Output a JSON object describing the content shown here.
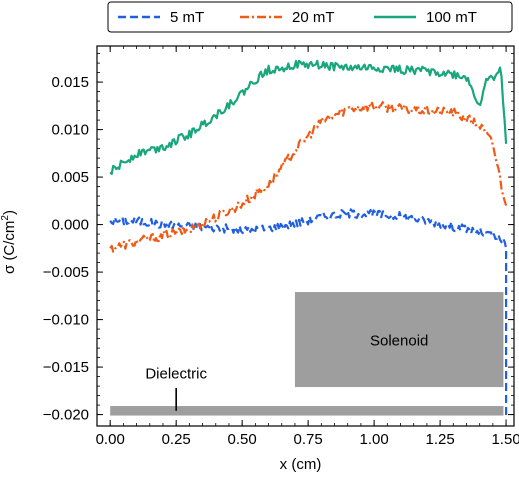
{
  "chart_data": {
    "type": "line",
    "title": "",
    "xlabel": "x (cm)",
    "ylabel_main": "σ (C/cm",
    "ylabel_sup": "2",
    "ylabel_tail": ")",
    "xlim": [
      -0.05,
      1.53
    ],
    "ylim": [
      -0.0212,
      0.0188
    ],
    "xticks": [
      0.0,
      0.25,
      0.5,
      0.75,
      1.0,
      1.25,
      1.5
    ],
    "xtick_labels": [
      "0.00",
      "0.25",
      "0.50",
      "0.75",
      "1.00",
      "1.25",
      "1.50"
    ],
    "yticks": [
      -0.02,
      -0.015,
      -0.01,
      -0.005,
      0.0,
      0.005,
      0.01,
      0.015
    ],
    "ytick_labels": [
      "−0.020",
      "−0.015",
      "−0.010",
      "−0.005",
      "0.000",
      "0.005",
      "0.010",
      "0.015"
    ],
    "grid": false,
    "legend_position": "top (above plot)",
    "series": [
      {
        "name": "5 mT",
        "color": "#1f5fe0",
        "dash": "dashed",
        "x": [
          0.0,
          0.1,
          0.2,
          0.3,
          0.4,
          0.5,
          0.6,
          0.7,
          0.8,
          0.9,
          1.0,
          1.1,
          1.2,
          1.3,
          1.4,
          1.45,
          1.49,
          1.5,
          1.5
        ],
        "y": [
          0.0004,
          0.0004,
          0.0,
          -0.0002,
          -0.0003,
          -0.0006,
          -0.0004,
          0.0001,
          0.0008,
          0.0012,
          0.0011,
          0.0009,
          0.0004,
          -0.0002,
          -0.0008,
          -0.0012,
          -0.0018,
          -0.0025,
          -0.0205
        ]
      },
      {
        "name": "20 mT",
        "color": "#f05a14",
        "dash": "dashdot",
        "x": [
          0.0,
          0.1,
          0.2,
          0.3,
          0.4,
          0.5,
          0.6,
          0.7,
          0.8,
          0.9,
          1.0,
          1.1,
          1.2,
          1.3,
          1.4,
          1.45,
          1.48,
          1.5
        ],
        "y": [
          -0.0025,
          -0.0018,
          -0.0012,
          -0.0005,
          0.0008,
          0.0022,
          0.0042,
          0.0078,
          0.0108,
          0.0122,
          0.0125,
          0.0122,
          0.012,
          0.0118,
          0.0105,
          0.0085,
          0.0045,
          0.002
        ]
      },
      {
        "name": "100 mT",
        "color": "#1aa67c",
        "dash": "solid",
        "x": [
          0.0,
          0.05,
          0.1,
          0.2,
          0.3,
          0.4,
          0.5,
          0.55,
          0.6,
          0.7,
          0.8,
          0.9,
          1.0,
          1.1,
          1.2,
          1.3,
          1.35,
          1.4,
          1.42,
          1.45,
          1.48,
          1.5
        ],
        "y": [
          0.0055,
          0.0065,
          0.0075,
          0.0082,
          0.0095,
          0.0115,
          0.0138,
          0.0152,
          0.0163,
          0.0168,
          0.0168,
          0.0165,
          0.0165,
          0.0163,
          0.0162,
          0.0158,
          0.0155,
          0.0125,
          0.0148,
          0.0155,
          0.0163,
          0.0085
        ]
      }
    ],
    "annotations": [
      {
        "kind": "rect",
        "label": "Solenoid",
        "color": "#9e9e9e",
        "x0": 0.7,
        "x1": 1.49,
        "y0": -0.0171,
        "y1": -0.0071
      },
      {
        "kind": "rect",
        "label": "",
        "color": "#9e9e9e",
        "x0": 0.0,
        "x1": 1.49,
        "y0": -0.0201,
        "y1": -0.0191
      },
      {
        "kind": "text",
        "label": "Dielectric",
        "x": 0.25,
        "y": -0.0162
      },
      {
        "kind": "line",
        "label": "",
        "x": 0.25,
        "y0": -0.0196,
        "y1": -0.0172
      }
    ]
  }
}
